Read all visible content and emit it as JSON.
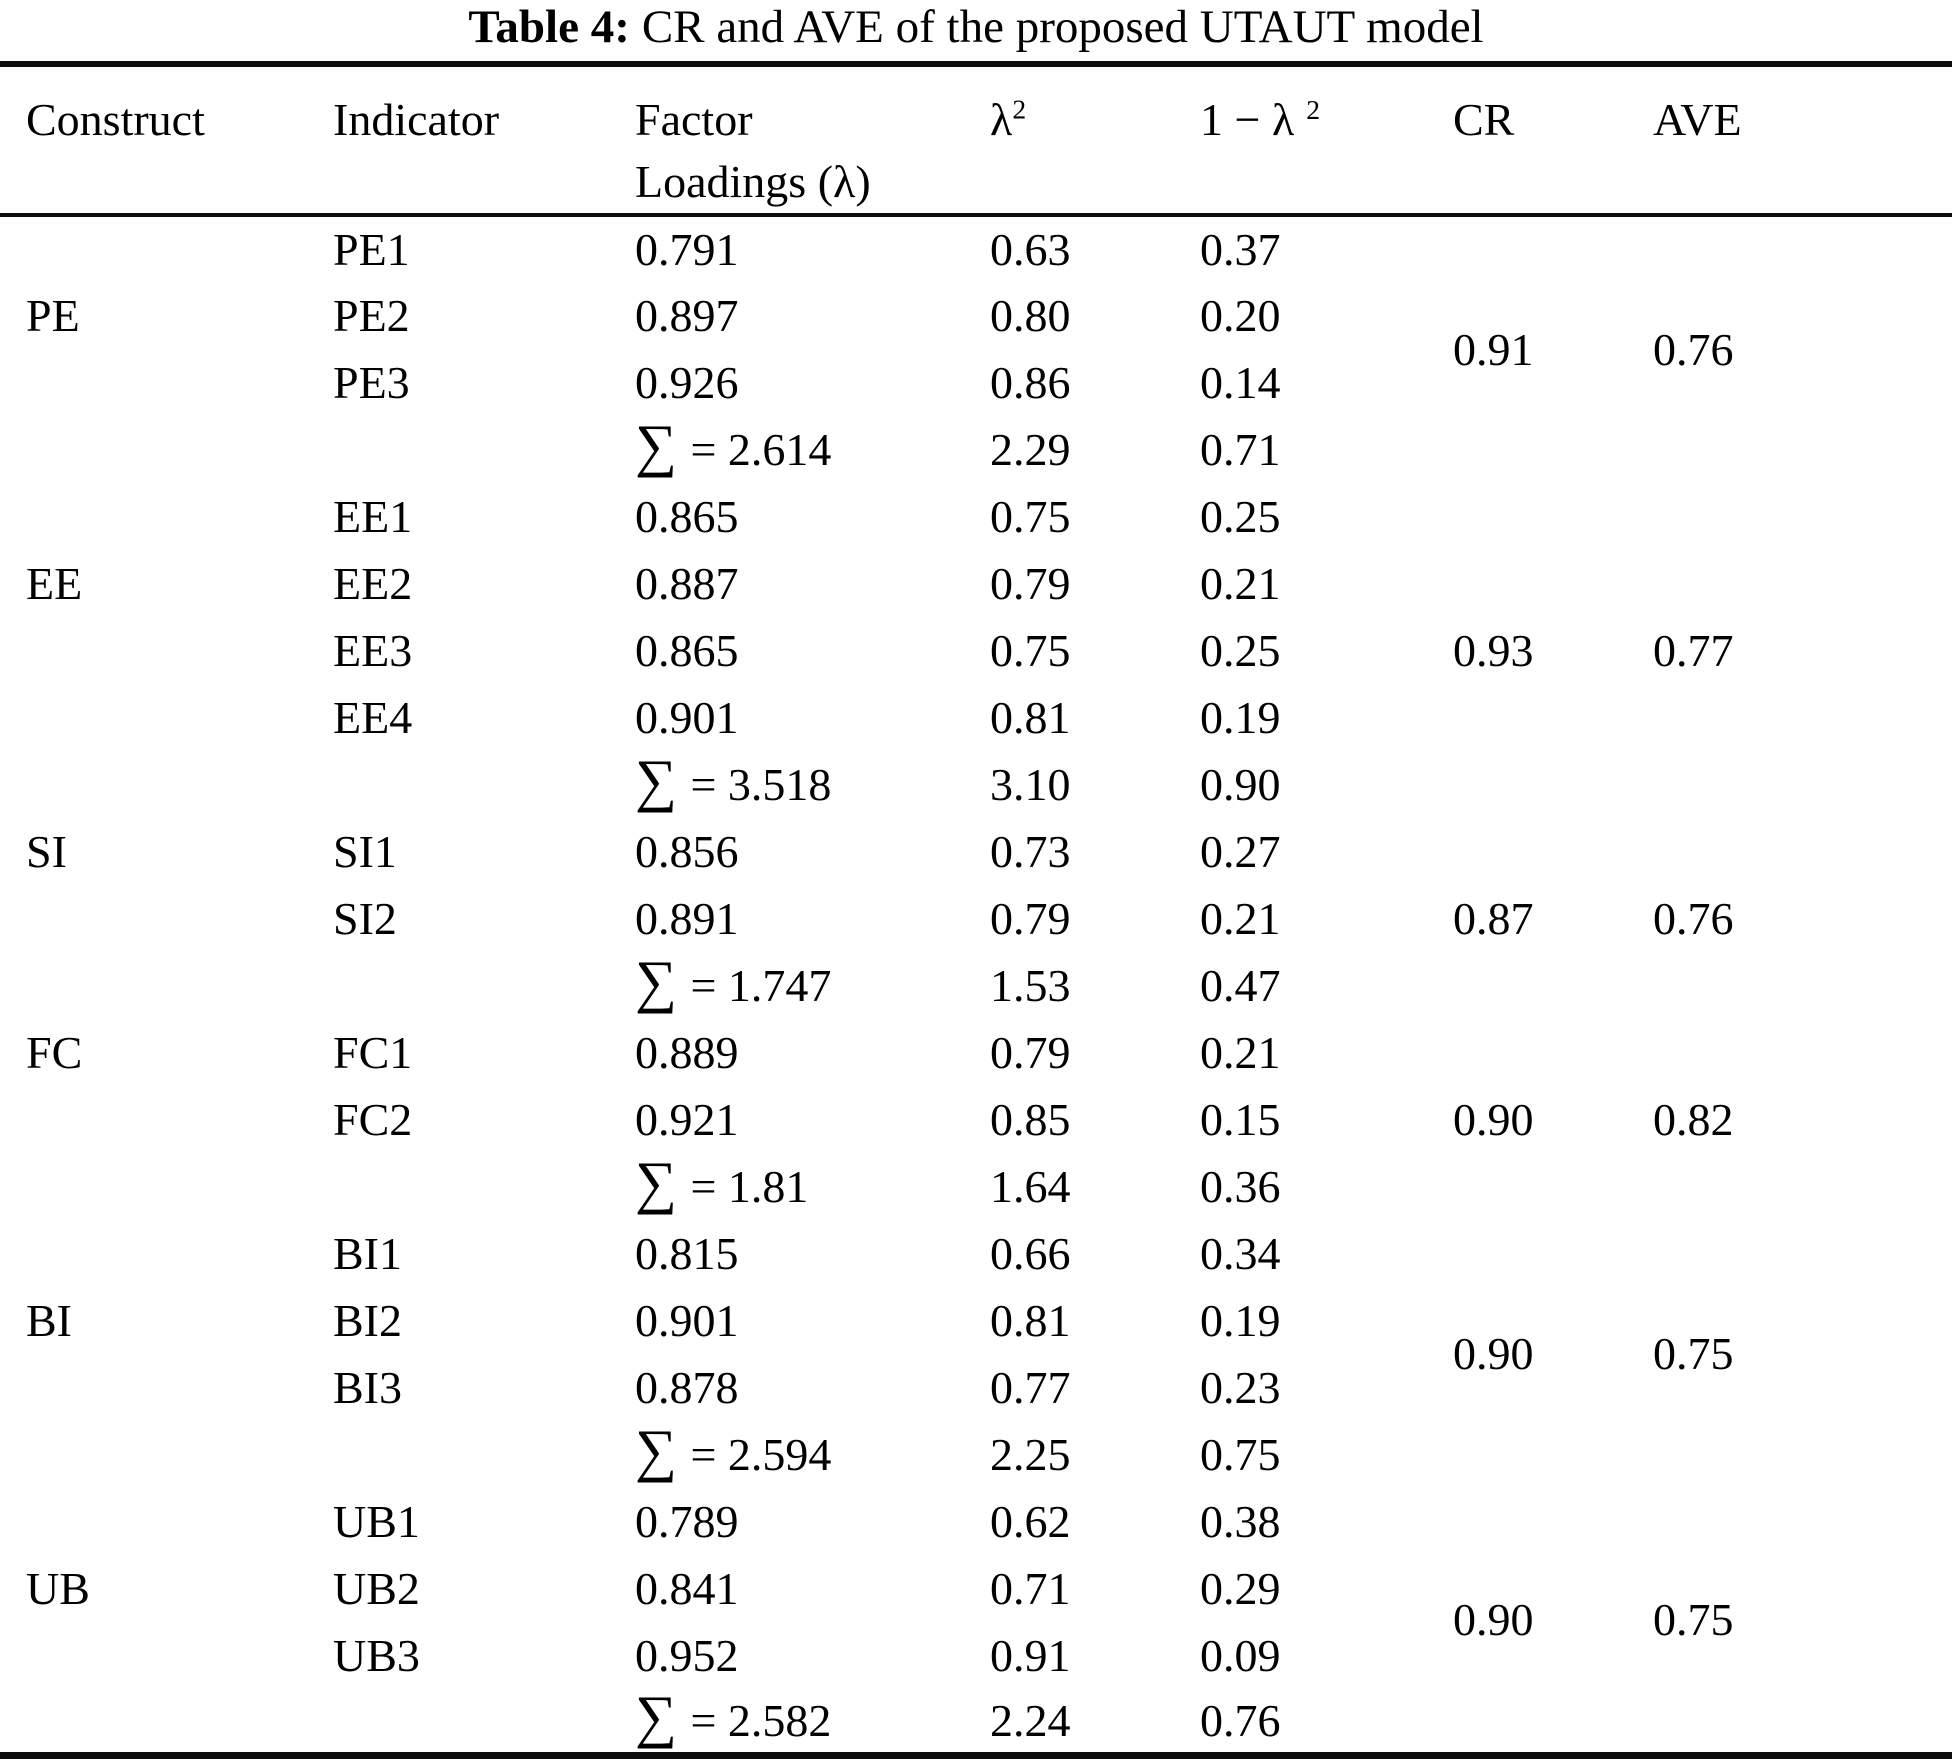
{
  "title": {
    "label": "Table 4:",
    "text": "CR and AVE of the proposed UTAUT model"
  },
  "header": {
    "construct": "Construct",
    "indicator": "Indicator",
    "factor_loadings_line1": "Factor",
    "factor_loadings_line2": "Loadings (λ)",
    "lambda_squared": {
      "base": "λ",
      "sup": "2"
    },
    "one_minus_lambda_squared": {
      "base": "1 − λ",
      "sup": "2"
    },
    "cr": "CR",
    "ave": "AVE"
  },
  "table": {
    "groups": [
      {
        "construct": "PE",
        "construct_row_index": 1,
        "cr": "0.91",
        "ave": "0.76",
        "rows": [
          {
            "indicator": "PE1",
            "factor_loading": "0.791",
            "lambda_sq": "0.63",
            "one_minus_lambda_sq": "0.37"
          },
          {
            "indicator": "PE2",
            "factor_loading": "0.897",
            "lambda_sq": "0.80",
            "one_minus_lambda_sq": "0.20"
          },
          {
            "indicator": "PE3",
            "factor_loading": "0.926",
            "lambda_sq": "0.86",
            "one_minus_lambda_sq": "0.14"
          },
          {
            "indicator": "",
            "sigma": "∑",
            "factor_loading": "= 2.614",
            "lambda_sq": "2.29",
            "one_minus_lambda_sq": "0.71"
          }
        ]
      },
      {
        "construct": "EE",
        "construct_row_index": 1,
        "cr": "0.93",
        "ave": "0.77",
        "rows": [
          {
            "indicator": "EE1",
            "factor_loading": "0.865",
            "lambda_sq": "0.75",
            "one_minus_lambda_sq": "0.25"
          },
          {
            "indicator": "EE2",
            "factor_loading": "0.887",
            "lambda_sq": "0.79",
            "one_minus_lambda_sq": "0.21"
          },
          {
            "indicator": "EE3",
            "factor_loading": "0.865",
            "lambda_sq": "0.75",
            "one_minus_lambda_sq": "0.25"
          },
          {
            "indicator": "EE4",
            "factor_loading": "0.901",
            "lambda_sq": "0.81",
            "one_minus_lambda_sq": "0.19"
          },
          {
            "indicator": "",
            "sigma": "∑",
            "factor_loading": "= 3.518",
            "lambda_sq": "3.10",
            "one_minus_lambda_sq": "0.90"
          }
        ]
      },
      {
        "construct": "SI",
        "construct_row_index": 0,
        "cr": "0.87",
        "ave": "0.76",
        "rows": [
          {
            "indicator": "SI1",
            "factor_loading": "0.856",
            "lambda_sq": "0.73",
            "one_minus_lambda_sq": "0.27"
          },
          {
            "indicator": "SI2",
            "factor_loading": "0.891",
            "lambda_sq": "0.79",
            "one_minus_lambda_sq": "0.21"
          },
          {
            "indicator": "",
            "sigma": "∑",
            "factor_loading": "= 1.747",
            "lambda_sq": "1.53",
            "one_minus_lambda_sq": "0.47"
          }
        ]
      },
      {
        "construct": "FC",
        "construct_row_index": 0,
        "cr": "0.90",
        "ave": "0.82",
        "rows": [
          {
            "indicator": "FC1",
            "factor_loading": "0.889",
            "lambda_sq": "0.79",
            "one_minus_lambda_sq": "0.21"
          },
          {
            "indicator": "FC2",
            "factor_loading": "0.921",
            "lambda_sq": "0.85",
            "one_minus_lambda_sq": "0.15"
          },
          {
            "indicator": "",
            "sigma": "∑",
            "factor_loading": "= 1.81",
            "lambda_sq": "1.64",
            "one_minus_lambda_sq": "0.36"
          }
        ]
      },
      {
        "construct": "BI",
        "construct_row_index": 1,
        "cr": "0.90",
        "ave": "0.75",
        "rows": [
          {
            "indicator": "BI1",
            "factor_loading": "0.815",
            "lambda_sq": "0.66",
            "one_minus_lambda_sq": "0.34"
          },
          {
            "indicator": "BI2",
            "factor_loading": "0.901",
            "lambda_sq": "0.81",
            "one_minus_lambda_sq": "0.19"
          },
          {
            "indicator": "BI3",
            "factor_loading": "0.878",
            "lambda_sq": "0.77",
            "one_minus_lambda_sq": "0.23"
          },
          {
            "indicator": "",
            "sigma": "∑",
            "factor_loading": "= 2.594",
            "lambda_sq": "2.25",
            "one_minus_lambda_sq": "0.75"
          }
        ]
      },
      {
        "construct": "UB",
        "construct_row_index": 1,
        "cr": "0.90",
        "ave": "0.75",
        "rows": [
          {
            "indicator": "UB1",
            "factor_loading": "0.789",
            "lambda_sq": "0.62",
            "one_minus_lambda_sq": "0.38"
          },
          {
            "indicator": "UB2",
            "factor_loading": "0.841",
            "lambda_sq": "0.71",
            "one_minus_lambda_sq": "0.29"
          },
          {
            "indicator": "UB3",
            "factor_loading": "0.952",
            "lambda_sq": "0.91",
            "one_minus_lambda_sq": "0.09"
          },
          {
            "indicator": "",
            "sigma": "∑",
            "factor_loading": "= 2.582",
            "lambda_sq": "2.24",
            "one_minus_lambda_sq": "0.76"
          }
        ]
      }
    ]
  }
}
